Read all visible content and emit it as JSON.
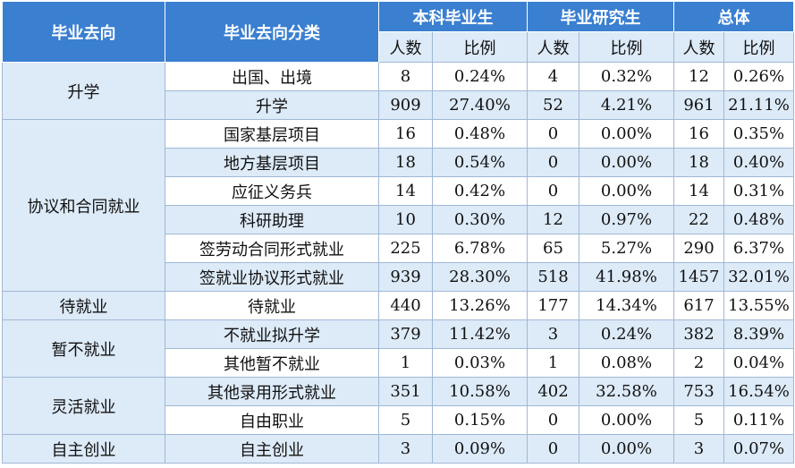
{
  "header": {
    "direction": "毕业去向",
    "category": "毕业去向分类",
    "undergrad": "本科毕业生",
    "graduate": "毕业研究生",
    "total": "总体",
    "count": "人数",
    "ratio": "比例"
  },
  "groups": [
    {
      "name": "升学",
      "rows": [
        {
          "category": "出国、出境",
          "ug_n": "8",
          "ug_p": "0.24%",
          "gr_n": "4",
          "gr_p": "0.32%",
          "t_n": "12",
          "t_p": "0.26%"
        },
        {
          "category": "升学",
          "ug_n": "909",
          "ug_p": "27.40%",
          "gr_n": "52",
          "gr_p": "4.21%",
          "t_n": "961",
          "t_p": "21.11%"
        }
      ]
    },
    {
      "name": "协议和合同就业",
      "rows": [
        {
          "category": "国家基层项目",
          "ug_n": "16",
          "ug_p": "0.48%",
          "gr_n": "0",
          "gr_p": "0.00%",
          "t_n": "16",
          "t_p": "0.35%"
        },
        {
          "category": "地方基层项目",
          "ug_n": "18",
          "ug_p": "0.54%",
          "gr_n": "0",
          "gr_p": "0.00%",
          "t_n": "18",
          "t_p": "0.40%"
        },
        {
          "category": "应征义务兵",
          "ug_n": "14",
          "ug_p": "0.42%",
          "gr_n": "0",
          "gr_p": "0.00%",
          "t_n": "14",
          "t_p": "0.31%"
        },
        {
          "category": "科研助理",
          "ug_n": "10",
          "ug_p": "0.30%",
          "gr_n": "12",
          "gr_p": "0.97%",
          "t_n": "22",
          "t_p": "0.48%"
        },
        {
          "category": "签劳动合同形式就业",
          "ug_n": "225",
          "ug_p": "6.78%",
          "gr_n": "65",
          "gr_p": "5.27%",
          "t_n": "290",
          "t_p": "6.37%"
        },
        {
          "category": "签就业协议形式就业",
          "ug_n": "939",
          "ug_p": "28.30%",
          "gr_n": "518",
          "gr_p": "41.98%",
          "t_n": "1457",
          "t_p": "32.01%"
        }
      ]
    },
    {
      "name": "待就业",
      "rows": [
        {
          "category": "待就业",
          "ug_n": "440",
          "ug_p": "13.26%",
          "gr_n": "177",
          "gr_p": "14.34%",
          "t_n": "617",
          "t_p": "13.55%"
        }
      ]
    },
    {
      "name": "暂不就业",
      "rows": [
        {
          "category": "不就业拟升学",
          "ug_n": "379",
          "ug_p": "11.42%",
          "gr_n": "3",
          "gr_p": "0.24%",
          "t_n": "382",
          "t_p": "8.39%"
        },
        {
          "category": "其他暂不就业",
          "ug_n": "1",
          "ug_p": "0.03%",
          "gr_n": "1",
          "gr_p": "0.08%",
          "t_n": "2",
          "t_p": "0.04%"
        }
      ]
    },
    {
      "name": "灵活就业",
      "rows": [
        {
          "category": "其他录用形式就业",
          "ug_n": "351",
          "ug_p": "10.58%",
          "gr_n": "402",
          "gr_p": "32.58%",
          "t_n": "753",
          "t_p": "16.54%"
        },
        {
          "category": "自由职业",
          "ug_n": "5",
          "ug_p": "0.15%",
          "gr_n": "0",
          "gr_p": "0.00%",
          "t_n": "5",
          "t_p": "0.11%"
        }
      ]
    },
    {
      "name": "自主创业",
      "rows": [
        {
          "category": "自主创业",
          "ug_n": "3",
          "ug_p": "0.09%",
          "gr_n": "0",
          "gr_p": "0.00%",
          "t_n": "3",
          "t_p": "0.07%"
        }
      ]
    }
  ]
}
